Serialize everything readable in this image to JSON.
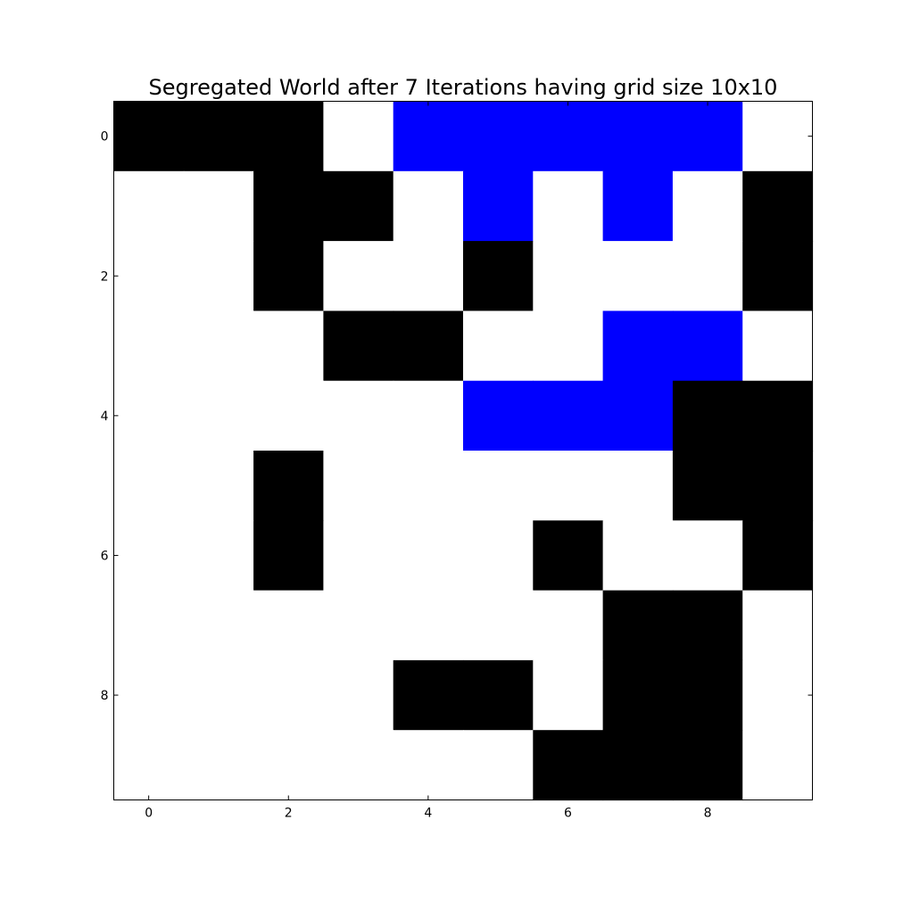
{
  "chart_data": {
    "type": "heatmap",
    "title": "Segregated World after 7 Iterations having grid size 10x10",
    "xlabel": "",
    "ylabel": "",
    "rows": 10,
    "cols": 10,
    "x_ticks": [
      0,
      2,
      4,
      6,
      8
    ],
    "y_ticks": [
      0,
      2,
      4,
      6,
      8
    ],
    "xlim": [
      -0.5,
      9.5
    ],
    "ylim": [
      9.5,
      -0.5
    ],
    "legend": "none",
    "grid": false,
    "value_legend": {
      "0": "empty",
      "1": "black",
      "2": "blue"
    },
    "colors": {
      "0": "#ffffff",
      "1": "#000000",
      "2": "#0000ff"
    },
    "grid_values": [
      [
        1,
        1,
        1,
        0,
        2,
        2,
        2,
        2,
        2,
        0
      ],
      [
        0,
        0,
        1,
        1,
        0,
        2,
        0,
        2,
        0,
        1
      ],
      [
        0,
        0,
        1,
        0,
        0,
        1,
        0,
        0,
        0,
        1
      ],
      [
        0,
        0,
        0,
        1,
        1,
        0,
        0,
        2,
        2,
        0
      ],
      [
        0,
        0,
        0,
        0,
        0,
        2,
        2,
        2,
        1,
        1
      ],
      [
        0,
        0,
        1,
        0,
        0,
        0,
        0,
        0,
        1,
        1
      ],
      [
        0,
        0,
        1,
        0,
        0,
        0,
        1,
        0,
        0,
        1
      ],
      [
        0,
        0,
        0,
        0,
        0,
        0,
        0,
        1,
        1,
        0
      ],
      [
        0,
        0,
        0,
        0,
        1,
        1,
        0,
        1,
        1,
        0
      ],
      [
        0,
        0,
        0,
        0,
        0,
        0,
        1,
        1,
        1,
        0
      ]
    ]
  }
}
